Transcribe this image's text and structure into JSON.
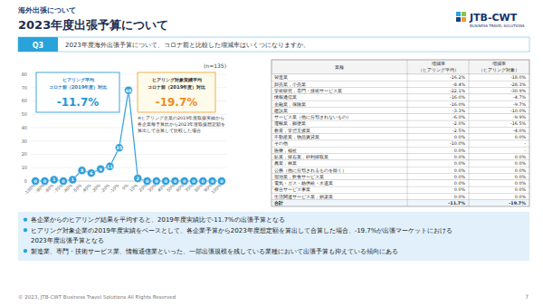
{
  "header": {
    "section": "海外出張について",
    "title": "2023年度出張予算について",
    "logo": {
      "name": "JTB-CWT",
      "tagline": "BUSINESS TRAVEL SOLUTIONS"
    }
  },
  "question": {
    "label": "Q3",
    "text": "2023年度海外出張予算について、コロナ前と比較した増減率はいくつになりますか。"
  },
  "chart_data": {
    "type": "line",
    "subtitle": "(n=135)",
    "categories": [
      "-100%",
      "-90%",
      "-80%",
      "-70%",
      "-60%",
      "-50%",
      "-40%",
      "-30%",
      "-20%",
      "-10%",
      "0%",
      "10%",
      "20%",
      "30%",
      "40%",
      "50%",
      "60%",
      "70%",
      "80%",
      "90%",
      "100%"
    ],
    "values": [
      0,
      0,
      1,
      0,
      1,
      8,
      6,
      9,
      11,
      25,
      68,
      2,
      0,
      0,
      0,
      0,
      0,
      0,
      0,
      0,
      0
    ],
    "color": "#2e9fd9",
    "marker": "circle",
    "data_labels": true,
    "ylim": [
      0,
      80
    ],
    "yticks": [
      0,
      10,
      20,
      30,
      40,
      50,
      60,
      70,
      80
    ],
    "grid": true,
    "annotations": [
      {
        "lines": [
          "ヒアリング平均",
          "コロナ前（2019年度）対比"
        ],
        "value": "-11.7%"
      },
      {
        "lines": [
          "ヒアリング対象実績平均",
          "コロナ前（2019年度）対比"
        ],
        "value": "-19.7%"
      }
    ],
    "note": [
      "※ヒアリング企業の2019年度取扱実績から",
      "各企業毎予算比から2023年度取扱想定額を",
      "算出して合算して比較した場合"
    ]
  },
  "table": {
    "columns": [
      [
        "業種"
      ],
      [
        "増減率",
        "（ヒアリング平均）"
      ],
      [
        "増減率",
        "（ヒアリング対象）"
      ]
    ],
    "rows": [
      [
        "製造業",
        "-16.2%",
        "-18.0%"
      ],
      [
        "卸売業，小売業",
        "-8.4%",
        "-28.3%"
      ],
      [
        "学術研究，専門・技術サービス業",
        "-22.1%",
        "-30.9%"
      ],
      [
        "情報通信業",
        "-16.0%",
        "-4.7%"
      ],
      [
        "金融業，保険業",
        "-16.0%",
        "-9.7%"
      ],
      [
        "建設業",
        "-3.3%",
        "-10.0%"
      ],
      [
        "サービス業（他に分類されないもの）",
        "-6.0%",
        "-9.9%"
      ],
      [
        "運輸業，郵便業",
        "-2.0%",
        "-16.5%"
      ],
      [
        "教育，学習支援業",
        "-2.5%",
        "-4.0%"
      ],
      [
        "不動産業，物品賃貸業",
        "0.0%",
        "0.0%"
      ],
      [
        "その他",
        "-10.0%",
        "-"
      ],
      [
        "医療，福祉",
        "0.0%",
        "-"
      ],
      [
        "鉱業，採石業，砂利採取業",
        "0.0%",
        "0.0%"
      ],
      [
        "農業，林業",
        "0.0%",
        "0.0%"
      ],
      [
        "公務（他に分類されるものを除く）",
        "0.0%",
        "0.0%"
      ],
      [
        "宿泊業，飲食サービス業",
        "0.0%",
        "0.0%"
      ],
      [
        "電気・ガス・熱供給・水道業",
        "0.0%",
        "0.0%"
      ],
      [
        "複合サービス事業",
        "0.0%",
        "0.0%"
      ],
      [
        "生活関連サービス業，娯楽業",
        "0.0%",
        "0.0%"
      ],
      [
        "合計",
        "-11.7%",
        "-19.7%"
      ]
    ]
  },
  "notes": [
    [
      "各企業からのヒアリング結果を平均すると、2019年度実績比で-11.7%の出張予算となる"
    ],
    [
      "ヒアリング対象企業の2019年度実績をベースとして、各企業予算から2023年度想定額を算出して合算した場合、-19.7%が出張マーケットにおける",
      "2023年度出張予算となる"
    ],
    [
      "製造業、専門・技術サービス業、情報通信業といった、一部出張規模を残している業種において出張予算も抑えている傾向にある"
    ]
  ],
  "footer": {
    "copyright": "© 2023, JTB-CWT Business Travel Solutions All Rights Reserved",
    "page": "7"
  }
}
